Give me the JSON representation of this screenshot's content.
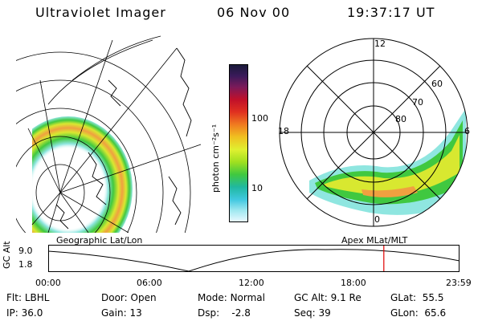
{
  "header": {
    "instrument": "Ultraviolet Imager",
    "date": "06 Nov 00",
    "time": "19:37:17 UT"
  },
  "colors": {
    "aurora_low": "#8fe6e0",
    "aurora_mid": "#2fc87a",
    "aurora_high": "#b8e020",
    "aurora_peak": "#f0e040",
    "aurora_max": "#f07a20",
    "marker": "#e00000"
  },
  "geo_map": {
    "label": "Geographic Lat/Lon"
  },
  "colorbar": {
    "unit_label": "photon cm⁻²s⁻¹",
    "ticks": [
      "100",
      "10"
    ],
    "stops": [
      "#1a1a3a",
      "#3a1a5a",
      "#7a1a5a",
      "#c0102a",
      "#e03020",
      "#f07a20",
      "#f0c020",
      "#e0f030",
      "#a0e020",
      "#40c840",
      "#20b8a0",
      "#40c8e0",
      "#a0e8f0",
      "#e8f8ff"
    ]
  },
  "polar_plot": {
    "label": "Apex MLat/MLT",
    "mlt_labels": [
      "12",
      "18",
      "6",
      "0"
    ],
    "lat_labels": [
      "60",
      "70",
      "80"
    ]
  },
  "altitude_plot": {
    "axis_title": "GC Alt",
    "y_ticks": [
      "9.0",
      "1.8"
    ],
    "x_ticks": [
      "00:00",
      "06:00",
      "12:00",
      "18:00",
      "23:59"
    ],
    "current_fraction": 0.816
  },
  "status": {
    "row1": [
      {
        "key": "Flt:",
        "val": "LBHL"
      },
      {
        "key": "Door:",
        "val": "Open"
      },
      {
        "key": "Mode:",
        "val": "Normal"
      },
      {
        "key": "GC Alt:",
        "val": "9.1 Re"
      },
      {
        "key": "GLat:",
        "val": "55.5"
      }
    ],
    "row2": [
      {
        "key": "IP:",
        "val": "36.0"
      },
      {
        "key": "Gain:",
        "val": "13"
      },
      {
        "key": "Dsp:",
        "val": "-2.8"
      },
      {
        "key": "Seq:",
        "val": "39"
      },
      {
        "key": "GLon:",
        "val": "65.6"
      }
    ]
  }
}
